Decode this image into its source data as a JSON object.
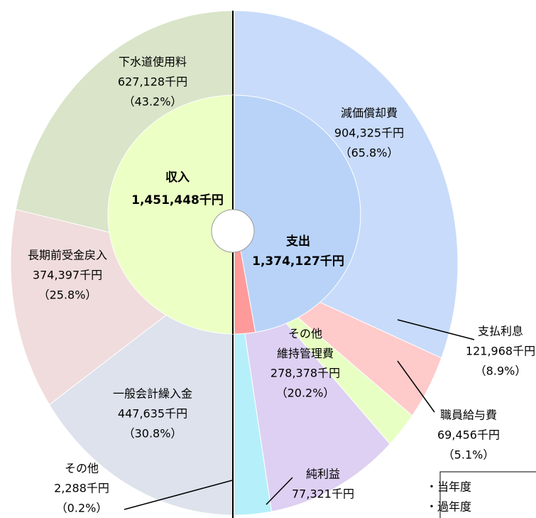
{
  "chart_data": {
    "type": "donut",
    "series": [
      {
        "name": "収入",
        "total": 1451448,
        "total_label": "1,451,448千円",
        "color": "#ecffc4",
        "categories": [
          "下水道使用料",
          "長期前受金戻入",
          "一般会計繰入金",
          "その他"
        ],
        "values": [
          627128,
          374397,
          447635,
          2288
        ],
        "value_labels": [
          "627,128千円",
          "374,397千円",
          "447,635千円",
          "2,288千円"
        ],
        "percent_labels": [
          "（43.2%）",
          "（25.8%）",
          "（30.8%）",
          "（0.2%）"
        ],
        "colors": [
          "#d9e4c9",
          "#f0dcdc",
          "#dde2ec",
          "#e9eef2"
        ]
      },
      {
        "name": "支出",
        "total": 1374127,
        "total_label": "1,374,127千円",
        "color": "#b9d3f8",
        "categories": [
          "減価償却費",
          "支払利息",
          "職員給与費",
          "その他\n維持管理費",
          "純利益"
        ],
        "values": [
          904325,
          121968,
          69456,
          278378,
          77321
        ],
        "value_labels": [
          "904,325千円",
          "121,968千円",
          "69,456千円",
          "278,378千円",
          "77,321千円"
        ],
        "percent_labels": [
          "（65.8%）",
          "（8.9%）",
          "（5.1%）",
          "（20.2%）",
          null
        ],
        "colors": [
          "#c8dbfa",
          "#ffcaca",
          "#e8ffc4",
          "#ddd0f2",
          "#b5f0fa"
        ],
        "profit_color": "#ff9a9a"
      }
    ],
    "notes": [
      "・当年度",
      "・過年度"
    ]
  }
}
